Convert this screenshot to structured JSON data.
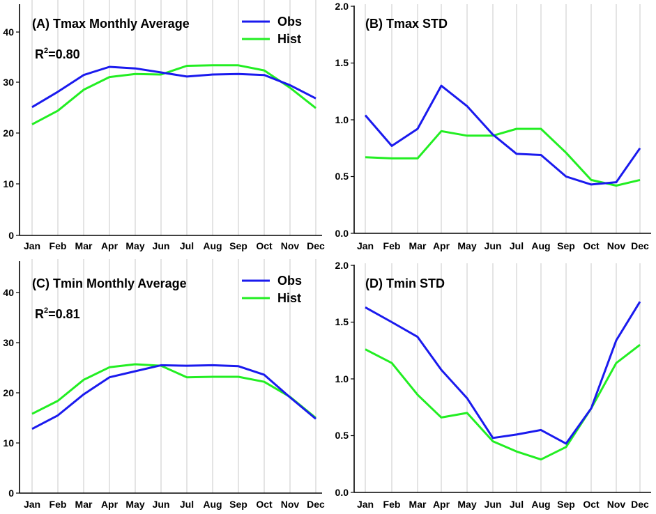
{
  "figure": {
    "background": "#ffffff",
    "obs_color": "#1a1aee",
    "hist_color": "#22ee22"
  },
  "chart_data": [
    {
      "id": "A",
      "type": "line",
      "title": "(A) Tmax Monthly Average",
      "categories": [
        "Jan",
        "Feb",
        "Mar",
        "Apr",
        "May",
        "Jun",
        "Jul",
        "Aug",
        "Sep",
        "Oct",
        "Nov",
        "Dec"
      ],
      "ylim": [
        0,
        45
      ],
      "yticks": [
        "0",
        "10",
        "20",
        "30",
        "40"
      ],
      "ytick_values": [
        0,
        10,
        20,
        30,
        40
      ],
      "r2": {
        "prefix": "R",
        "sup": "2",
        "value": "=0.80"
      },
      "legend": {
        "obs": "Obs",
        "hist": "Hist"
      },
      "series": [
        {
          "name": "Obs",
          "values": [
            25.2,
            28.2,
            31.5,
            33.1,
            32.8,
            32.0,
            31.2,
            31.6,
            31.7,
            31.5,
            29.5,
            26.9
          ]
        },
        {
          "name": "Hist",
          "values": [
            21.8,
            24.5,
            28.6,
            31.1,
            31.7,
            31.6,
            33.3,
            33.4,
            33.4,
            32.4,
            29.0,
            25.0
          ]
        }
      ]
    },
    {
      "id": "B",
      "type": "line",
      "title": "(B) Tmax STD",
      "categories": [
        "Jan",
        "Feb",
        "Mar",
        "Apr",
        "May",
        "Jun",
        "Jul",
        "Aug",
        "Sep",
        "Oct",
        "Nov",
        "Dec"
      ],
      "ylim": [
        0,
        2.0
      ],
      "yticks": [
        "0.0",
        "0.5",
        "1.0",
        "1.5",
        "2.0"
      ],
      "ytick_values": [
        0,
        0.5,
        1.0,
        1.5,
        2.0
      ],
      "series": [
        {
          "name": "Obs",
          "values": [
            1.04,
            0.77,
            0.92,
            1.3,
            1.12,
            0.87,
            0.7,
            0.69,
            0.5,
            0.43,
            0.45,
            0.75
          ]
        },
        {
          "name": "Hist",
          "values": [
            0.67,
            0.66,
            0.66,
            0.9,
            0.86,
            0.86,
            0.92,
            0.92,
            0.71,
            0.47,
            0.42,
            0.47
          ]
        }
      ]
    },
    {
      "id": "C",
      "type": "line",
      "title": "(C) Tmin Monthly Average",
      "categories": [
        "Jan",
        "Feb",
        "Mar",
        "Apr",
        "May",
        "Jun",
        "Jul",
        "Aug",
        "Sep",
        "Oct",
        "Nov",
        "Dec"
      ],
      "ylim": [
        0,
        45
      ],
      "yticks": [
        "0",
        "10",
        "20",
        "30",
        "40"
      ],
      "ytick_values": [
        0,
        10,
        20,
        30,
        40
      ],
      "r2": {
        "prefix": "R",
        "sup": "2",
        "value": "=0.81"
      },
      "legend": {
        "obs": "Obs",
        "hist": "Hist"
      },
      "series": [
        {
          "name": "Obs",
          "values": [
            12.8,
            15.5,
            19.7,
            23.1,
            24.3,
            25.5,
            25.4,
            25.5,
            25.3,
            23.6,
            19.1,
            14.8
          ]
        },
        {
          "name": "Hist",
          "values": [
            15.8,
            18.4,
            22.6,
            25.1,
            25.7,
            25.4,
            23.1,
            23.2,
            23.2,
            22.2,
            19.2,
            15.0
          ]
        }
      ]
    },
    {
      "id": "D",
      "type": "line",
      "title": "(D) Tmin STD",
      "categories": [
        "Jan",
        "Feb",
        "Mar",
        "Apr",
        "May",
        "Jun",
        "Jul",
        "Aug",
        "Sep",
        "Oct",
        "Nov",
        "Dec"
      ],
      "ylim": [
        0,
        2.0
      ],
      "yticks": [
        "0.0",
        "0.5",
        "1.0",
        "1.5",
        "2.0"
      ],
      "ytick_values": [
        0,
        0.5,
        1.0,
        1.5,
        2.0
      ],
      "series": [
        {
          "name": "Obs",
          "values": [
            1.63,
            1.5,
            1.37,
            1.08,
            0.83,
            0.48,
            0.51,
            0.55,
            0.43,
            0.74,
            1.34,
            1.68
          ]
        },
        {
          "name": "Hist",
          "values": [
            1.26,
            1.14,
            0.86,
            0.66,
            0.7,
            0.45,
            0.36,
            0.29,
            0.4,
            0.74,
            1.14,
            1.3
          ]
        }
      ]
    }
  ]
}
